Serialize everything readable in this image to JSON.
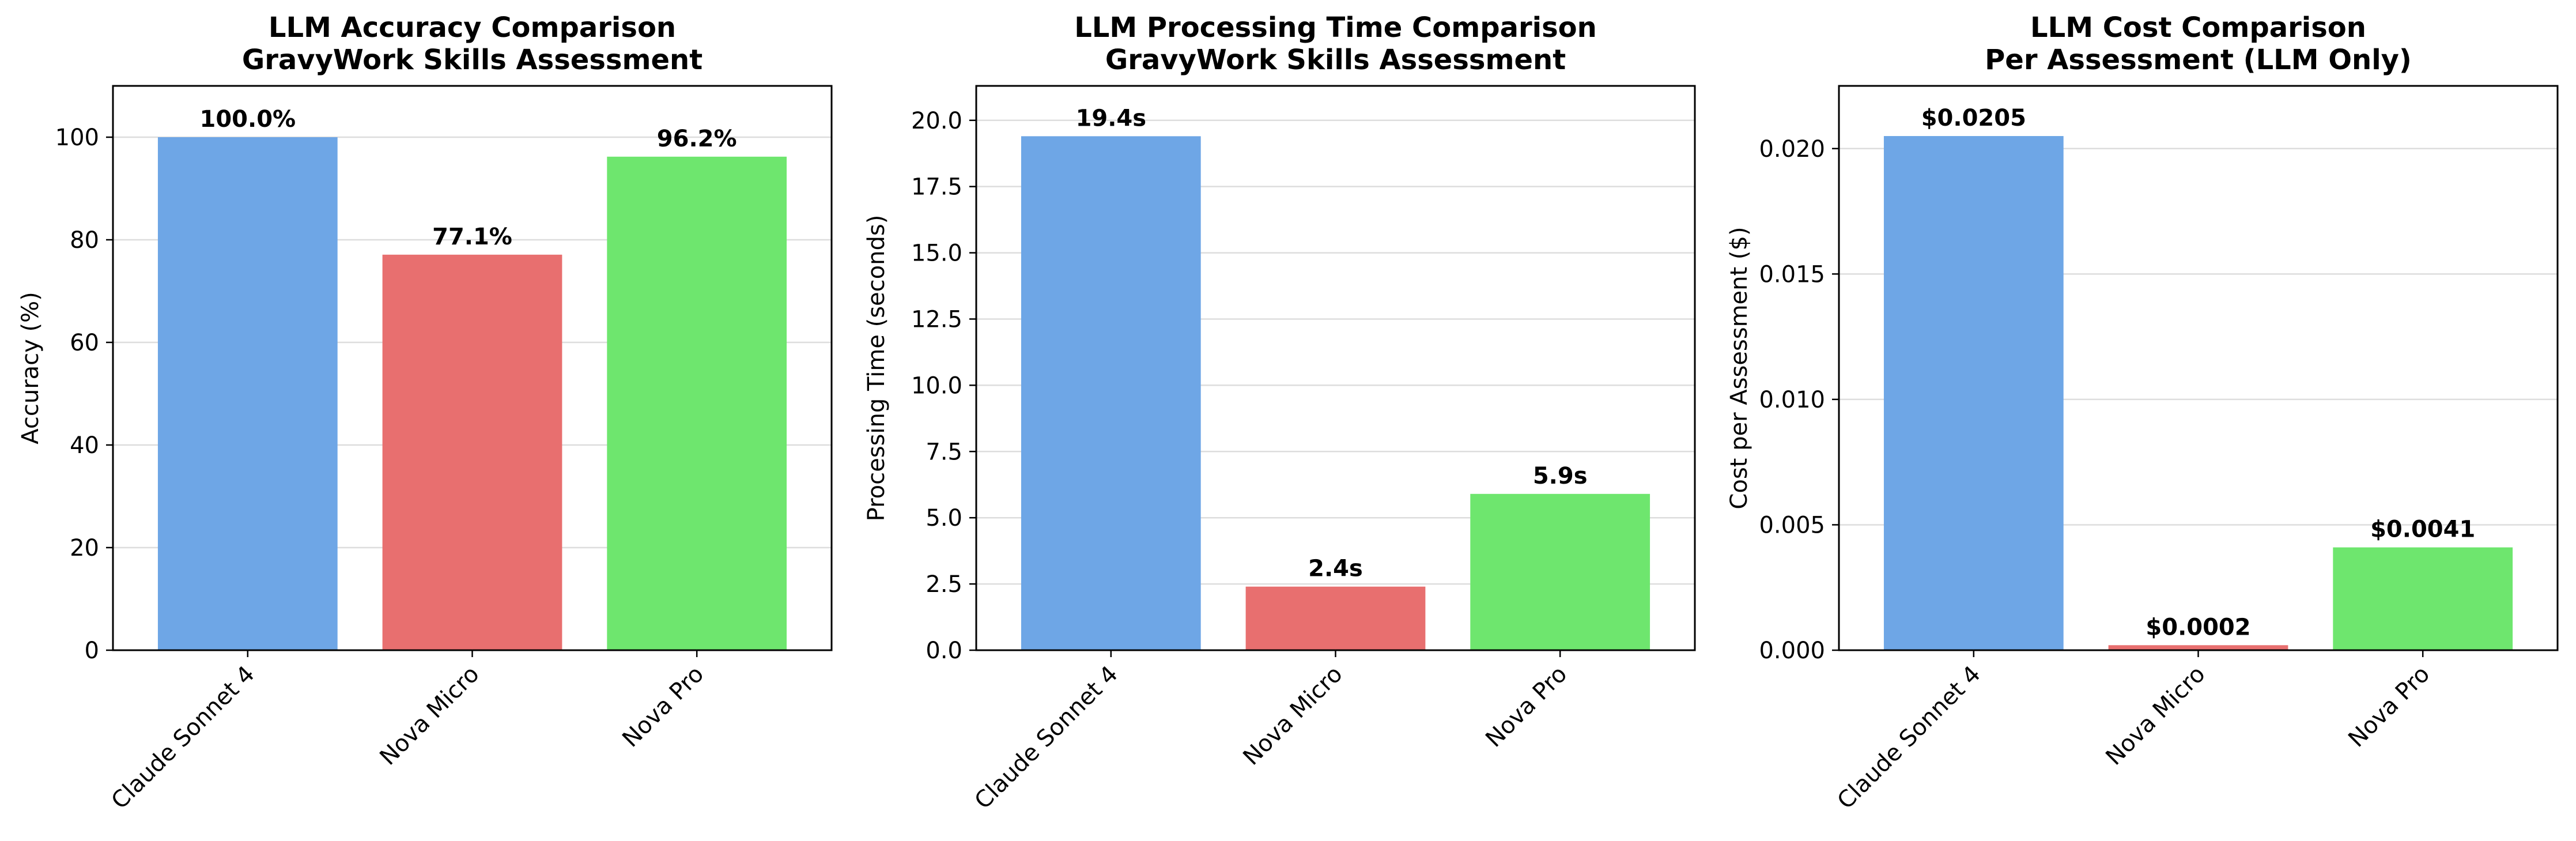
{
  "chart_data": [
    {
      "type": "bar",
      "title": "LLM Accuracy Comparison\nGravyWork Skills Assessment",
      "xlabel": "",
      "ylabel": "Accuracy (%)",
      "categories": [
        "Claude Sonnet 4",
        "Nova Micro",
        "Nova Pro"
      ],
      "values": [
        100.0,
        77.1,
        96.2
      ],
      "data_labels": [
        "100.0%",
        "77.1%",
        "96.2%"
      ],
      "ylim": [
        0,
        110
      ],
      "yticks": [
        0,
        20,
        40,
        60,
        80,
        100
      ],
      "ytick_labels": [
        "0",
        "20",
        "40",
        "60",
        "80",
        "100"
      ],
      "bar_colors": [
        "#6ea6e6",
        "#e86f6f",
        "#6ee66e"
      ],
      "grid": "y"
    },
    {
      "type": "bar",
      "title": "LLM Processing Time Comparison\nGravyWork Skills Assessment",
      "xlabel": "",
      "ylabel": "Processing Time (seconds)",
      "categories": [
        "Claude Sonnet 4",
        "Nova Micro",
        "Nova Pro"
      ],
      "values": [
        19.4,
        2.4,
        5.9
      ],
      "data_labels": [
        "19.4s",
        "2.4s",
        "5.9s"
      ],
      "ylim": [
        0,
        21.3
      ],
      "yticks": [
        0,
        2.5,
        5,
        7.5,
        10,
        12.5,
        15,
        17.5,
        20
      ],
      "ytick_labels": [
        "0.0",
        "2.5",
        "5.0",
        "7.5",
        "10.0",
        "12.5",
        "15.0",
        "17.5",
        "20.0"
      ],
      "bar_colors": [
        "#6ea6e6",
        "#e86f6f",
        "#6ee66e"
      ],
      "grid": "y"
    },
    {
      "type": "bar",
      "title": "LLM Cost Comparison\nPer Assessment (LLM Only)",
      "xlabel": "",
      "ylabel": "Cost per Assessment ($)",
      "categories": [
        "Claude Sonnet 4",
        "Nova Micro",
        "Nova Pro"
      ],
      "values": [
        0.0205,
        0.0002,
        0.0041
      ],
      "data_labels": [
        "$0.0205",
        "$0.0002",
        "$0.0041"
      ],
      "ylim": [
        0,
        0.0225
      ],
      "yticks": [
        0,
        0.005,
        0.01,
        0.015,
        0.02
      ],
      "ytick_labels": [
        "0.000",
        "0.005",
        "0.010",
        "0.015",
        "0.020"
      ],
      "bar_colors": [
        "#6ea6e6",
        "#e86f6f",
        "#6ee66e"
      ],
      "grid": "y"
    }
  ]
}
